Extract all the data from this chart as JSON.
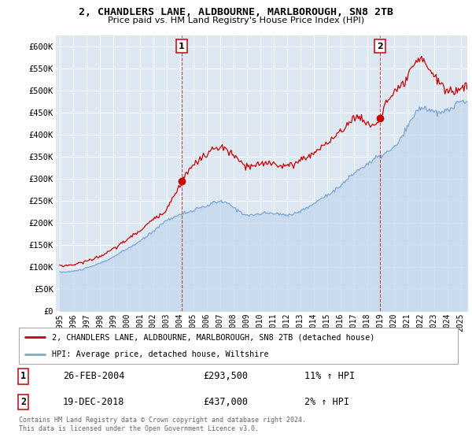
{
  "title": "2, CHANDLERS LANE, ALDBOURNE, MARLBOROUGH, SN8 2TB",
  "subtitle": "Price paid vs. HM Land Registry's House Price Index (HPI)",
  "legend_label_red": "2, CHANDLERS LANE, ALDBOURNE, MARLBOROUGH, SN8 2TB (detached house)",
  "legend_label_blue": "HPI: Average price, detached house, Wiltshire",
  "footnote": "Contains HM Land Registry data © Crown copyright and database right 2024.\nThis data is licensed under the Open Government Licence v3.0.",
  "sale1_label": "1",
  "sale1_date": "26-FEB-2004",
  "sale1_price": "£293,500",
  "sale1_hpi": "11% ↑ HPI",
  "sale2_label": "2",
  "sale2_date": "19-DEC-2018",
  "sale2_price": "£437,000",
  "sale2_hpi": "2% ↑ HPI",
  "sale1_year": 2004.12,
  "sale1_value": 293500,
  "sale2_year": 2018.96,
  "sale2_value": 437000,
  "red_color": "#cc0000",
  "blue_color": "#7aa7d4",
  "blue_fill_color": "#c8d9ee",
  "chart_bg_color": "#dde8f3",
  "background_color": "#ffffff",
  "ylim": [
    0,
    625000
  ],
  "xlim_start": 1994.7,
  "xlim_end": 2025.5,
  "yticks": [
    0,
    50000,
    100000,
    150000,
    200000,
    250000,
    300000,
    350000,
    400000,
    450000,
    500000,
    550000,
    600000
  ],
  "ytick_labels": [
    "£0",
    "£50K",
    "£100K",
    "£150K",
    "£200K",
    "£250K",
    "£300K",
    "£350K",
    "£400K",
    "£450K",
    "£500K",
    "£550K",
    "£600K"
  ]
}
